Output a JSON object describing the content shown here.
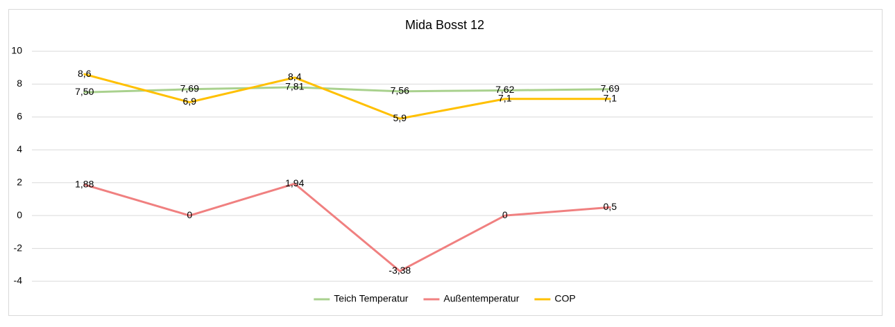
{
  "chart_data": {
    "type": "line",
    "title": "Mida Bosst 12",
    "categories": [
      null,
      null,
      null,
      null,
      null,
      null,
      null,
      null
    ],
    "series": [
      {
        "name": "Teich Temperatur",
        "color": "#a9d18e",
        "values": [
          7.5,
          7.69,
          7.81,
          7.56,
          7.62,
          7.69,
          null,
          null
        ],
        "value_labels": [
          "7,50",
          "7,69",
          "7,81",
          "7,56",
          "7,62",
          "7,69",
          null,
          null
        ]
      },
      {
        "name": "Außentemperatur",
        "color": "#f08080",
        "values": [
          1.88,
          0,
          1.94,
          -3.38,
          0,
          0.5,
          null,
          null
        ],
        "value_labels": [
          "1,88",
          "0",
          "1,94",
          "-3,38",
          "0",
          "0,5",
          null,
          null
        ]
      },
      {
        "name": "COP",
        "color": "#ffc000",
        "values": [
          8.6,
          6.9,
          8.4,
          5.9,
          7.1,
          7.1,
          null,
          null
        ],
        "value_labels": [
          "8,6",
          "6,9",
          "8,4",
          "5,9",
          "7,1",
          "7,1",
          null,
          null
        ]
      }
    ],
    "ylim": [
      -4,
      10
    ],
    "yticks": [
      -4,
      -2,
      0,
      2,
      4,
      6,
      8,
      10
    ],
    "grid": true,
    "legend": "bottom"
  }
}
